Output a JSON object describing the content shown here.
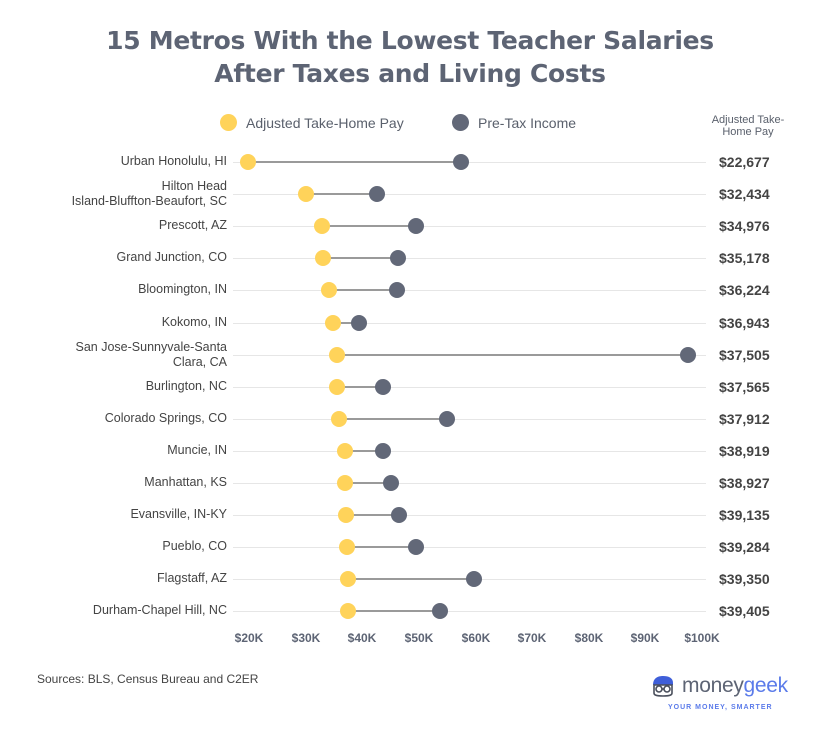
{
  "title": {
    "line1": "15 Metros With the Lowest Teacher Salaries",
    "line2": "After Taxes and Living Costs"
  },
  "legend": {
    "adjusted_label": "Adjusted Take-Home Pay",
    "pretax_label": "Pre-Tax Income",
    "adjusted_color": "#ffd35a",
    "pretax_color": "#626878"
  },
  "value_column_header": {
    "line1": "Adjusted Take-",
    "line2": "Home Pay"
  },
  "rows": [
    {
      "label1": "Urban Honolulu, HI",
      "label2": "",
      "value_text": "$22,677"
    },
    {
      "label1": "Hilton Head",
      "label2": "Island-Bluffton-Beaufort, SC",
      "value_text": "$32,434"
    },
    {
      "label1": "Prescott, AZ",
      "label2": "",
      "value_text": "$34,976"
    },
    {
      "label1": "Grand Junction, CO",
      "label2": "",
      "value_text": "$35,178"
    },
    {
      "label1": "Bloomington, IN",
      "label2": "",
      "value_text": "$36,224"
    },
    {
      "label1": "Kokomo, IN",
      "label2": "",
      "value_text": "$36,943"
    },
    {
      "label1": "San Jose-Sunnyvale-Santa",
      "label2": "Clara, CA",
      "value_text": "$37,505"
    },
    {
      "label1": "Burlington, NC",
      "label2": "",
      "value_text": "$37,565"
    },
    {
      "label1": "Colorado Springs, CO",
      "label2": "",
      "value_text": "$37,912"
    },
    {
      "label1": "Muncie, IN",
      "label2": "",
      "value_text": "$38,919"
    },
    {
      "label1": "Manhattan, KS",
      "label2": "",
      "value_text": "$38,927"
    },
    {
      "label1": "Evansville, IN-KY",
      "label2": "",
      "value_text": "$39,135"
    },
    {
      "label1": "Pueblo, CO",
      "label2": "",
      "value_text": "$39,284"
    },
    {
      "label1": "Flagstaff, AZ",
      "label2": "",
      "value_text": "$39,350"
    },
    {
      "label1": "Durham-Chapel Hill, NC",
      "label2": "",
      "value_text": "$39,405"
    }
  ],
  "x_ticks": [
    "$20K",
    "$30K",
    "$40K",
    "$50K",
    "$60K",
    "$70K",
    "$80K",
    "$90K",
    "$100K"
  ],
  "source": "Sources: BLS, Census Bureau and C2ER",
  "brand": {
    "name_part1": "money",
    "name_part2": "geek",
    "tagline": "YOUR MONEY, SMARTER"
  },
  "chart_data": {
    "type": "dumbbell",
    "title": "15 Metros With the Lowest Teacher Salaries After Taxes and Living Costs",
    "xlabel": "",
    "ylabel": "",
    "xlim": [
      20000,
      100000
    ],
    "x_tick_labels": [
      "$20K",
      "$30K",
      "$40K",
      "$50K",
      "$60K",
      "$70K",
      "$80K",
      "$90K",
      "$100K"
    ],
    "grid": "horizontal row lines",
    "legend_position": "top",
    "categories": [
      "Urban Honolulu, HI",
      "Hilton Head Island-Bluffton-Beaufort, SC",
      "Prescott, AZ",
      "Grand Junction, CO",
      "Bloomington, IN",
      "Kokomo, IN",
      "San Jose-Sunnyvale-Santa Clara, CA",
      "Burlington, NC",
      "Colorado Springs, CO",
      "Muncie, IN",
      "Manhattan, KS",
      "Evansville, IN-KY",
      "Pueblo, CO",
      "Flagstaff, AZ",
      "Durham-Chapel Hill, NC"
    ],
    "series": [
      {
        "name": "Adjusted Take-Home Pay",
        "color": "#ffd35a",
        "values": [
          22677,
          32434,
          34976,
          35178,
          36224,
          36943,
          37505,
          37565,
          37912,
          38919,
          38927,
          39135,
          39284,
          39350,
          39405
        ]
      },
      {
        "name": "Pre-Tax Income",
        "color": "#626878",
        "values": [
          58300,
          44200,
          50800,
          47800,
          47600,
          41200,
          96300,
          45200,
          56000,
          45200,
          46600,
          47900,
          50800,
          60500,
          54800
        ]
      }
    ],
    "annotations": [
      "Right column: Adjusted Take-Home Pay values",
      "Sources: BLS, Census Bureau and C2ER"
    ]
  }
}
